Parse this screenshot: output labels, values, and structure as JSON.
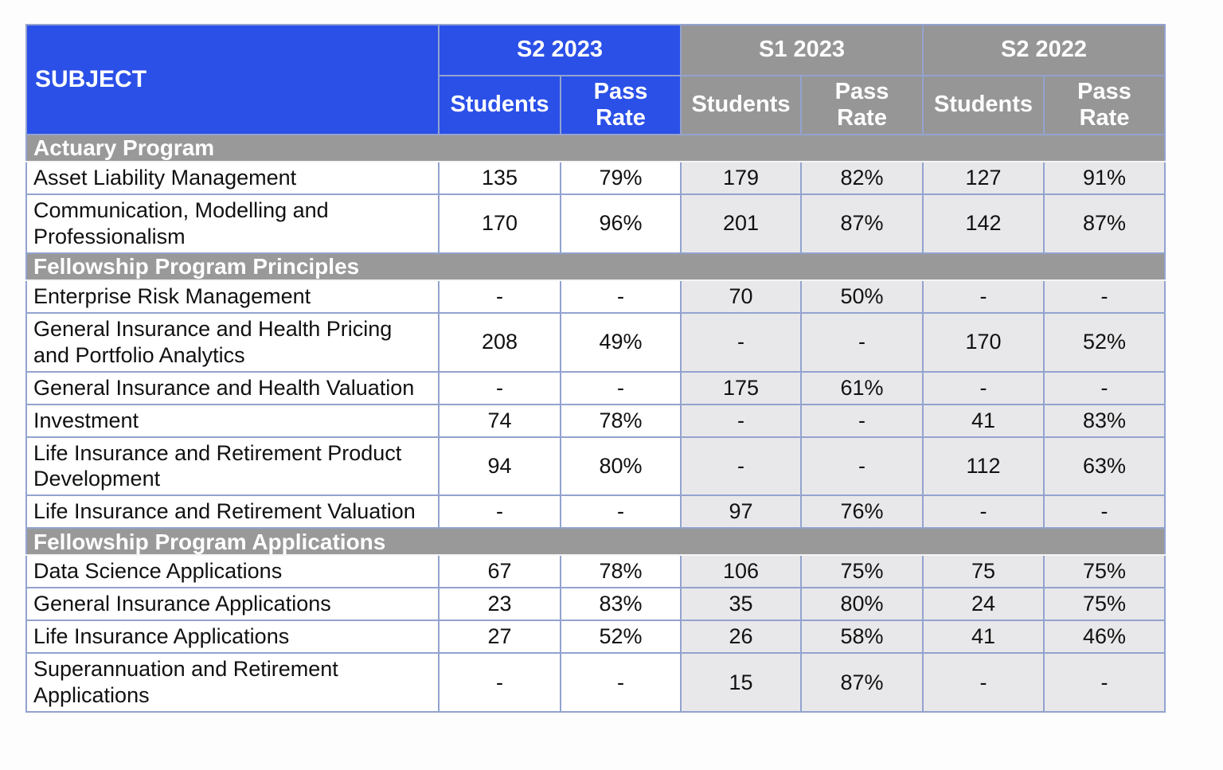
{
  "table": {
    "subject_header": "SUBJECT",
    "semesters": [
      {
        "label": "S2 2023",
        "theme": "blue"
      },
      {
        "label": "S1 2023",
        "theme": "gray"
      },
      {
        "label": "S2 2022",
        "theme": "gray"
      }
    ],
    "sub_headers": {
      "students": "Students",
      "pass_rate": "Pass Rate"
    },
    "sections": [
      {
        "title": "Actuary Program",
        "rows": [
          {
            "subject": "Asset Liability Management",
            "values": [
              "135",
              "79%",
              "179",
              "82%",
              "127",
              "91%"
            ]
          },
          {
            "subject": "Communication, Modelling and Professionalism",
            "values": [
              "170",
              "96%",
              "201",
              "87%",
              "142",
              "87%"
            ]
          }
        ]
      },
      {
        "title": "Fellowship Program Principles",
        "rows": [
          {
            "subject": "Enterprise Risk Management",
            "values": [
              "-",
              "-",
              "70",
              "50%",
              "-",
              "-"
            ]
          },
          {
            "subject": "General Insurance and Health Pricing and Portfolio Analytics",
            "values": [
              "208",
              "49%",
              "-",
              "-",
              "170",
              "52%"
            ]
          },
          {
            "subject": "General Insurance and Health Valuation",
            "values": [
              "-",
              "-",
              "175",
              "61%",
              "-",
              "-"
            ]
          },
          {
            "subject": "Investment",
            "values": [
              "74",
              "78%",
              "-",
              "-",
              "41",
              "83%"
            ]
          },
          {
            "subject": "Life Insurance and Retirement Product Development",
            "values": [
              "94",
              "80%",
              "-",
              "-",
              "112",
              "63%"
            ]
          },
          {
            "subject": "Life Insurance and Retirement Valuation",
            "values": [
              "-",
              "-",
              "97",
              "76%",
              "-",
              "-"
            ]
          }
        ]
      },
      {
        "title": "Fellowship Program Applications",
        "rows": [
          {
            "subject": "Data Science Applications",
            "values": [
              "67",
              "78%",
              "106",
              "75%",
              "75",
              "75%"
            ]
          },
          {
            "subject": "General Insurance Applications",
            "values": [
              "23",
              "83%",
              "35",
              "80%",
              "24",
              "75%"
            ]
          },
          {
            "subject": "Life Insurance Applications",
            "values": [
              "27",
              "52%",
              "26",
              "58%",
              "41",
              "46%"
            ]
          },
          {
            "subject": "Superannuation and Retirement Applications",
            "values": [
              "-",
              "-",
              "15",
              "87%",
              "-",
              "-"
            ]
          }
        ]
      }
    ]
  },
  "colors": {
    "header_blue": "#2b50e8",
    "header_gray": "#969696",
    "section_gray": "#999999",
    "shaded_cell": "#e8e8ea",
    "border": "#93a3cf"
  }
}
